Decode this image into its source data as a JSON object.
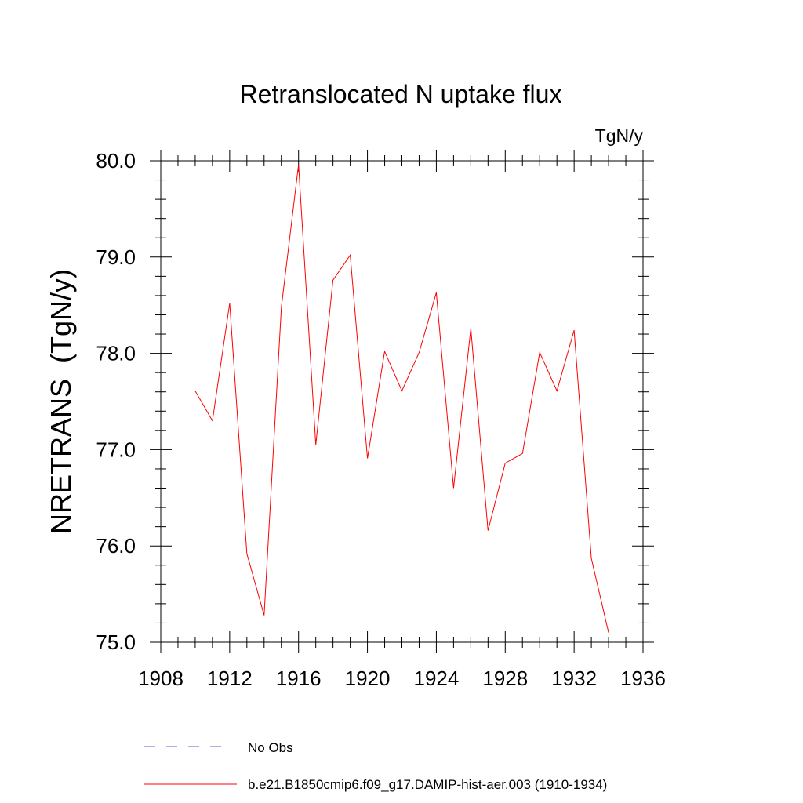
{
  "chart_data": {
    "type": "line",
    "title": "Retranslocated N uptake flux",
    "units_label": "TgN/y",
    "ylabel": "NRETRANS  (TgN/y)",
    "xlabel": "",
    "xlim": [
      1908,
      1936
    ],
    "ylim": [
      75.0,
      80.0
    ],
    "x_major_ticks": [
      1908,
      1912,
      1916,
      1920,
      1924,
      1928,
      1932,
      1936
    ],
    "x_tick_labels": [
      "1908",
      "1912",
      "1916",
      "1920",
      "1924",
      "1928",
      "1932",
      "1936"
    ],
    "x_minor_step": 1,
    "y_major_ticks": [
      75.0,
      76.0,
      77.0,
      78.0,
      79.0,
      80.0
    ],
    "y_tick_labels": [
      "75.0",
      "76.0",
      "77.0",
      "78.0",
      "79.0",
      "80.0"
    ],
    "y_minor_step": 0.2,
    "grid": false,
    "legend_placement": "bottom",
    "series": [
      {
        "name": "b.e21.B1850cmip6.f09_g17.DAMIP-hist-aer.003 (1910-1934)",
        "color": "#ff0000",
        "style": "solid",
        "x": [
          1910,
          1911,
          1912,
          1913,
          1914,
          1915,
          1916,
          1917,
          1918,
          1919,
          1920,
          1921,
          1922,
          1923,
          1924,
          1925,
          1926,
          1927,
          1928,
          1929,
          1930,
          1931,
          1932,
          1933,
          1934
        ],
        "values": [
          77.61,
          77.3,
          78.52,
          75.92,
          75.28,
          78.48,
          79.96,
          77.05,
          78.76,
          79.02,
          76.91,
          78.02,
          77.61,
          78.01,
          78.63,
          76.6,
          78.26,
          76.16,
          76.86,
          76.96,
          78.01,
          77.61,
          78.24,
          75.87,
          75.1
        ]
      }
    ],
    "legend": [
      {
        "label": "No Obs",
        "color": "#6a5acd",
        "style": "dashed"
      },
      {
        "label": "b.e21.B1850cmip6.f09_g17.DAMIP-hist-aer.003 (1910-1934)",
        "color": "#ff0000",
        "style": "solid"
      }
    ]
  }
}
